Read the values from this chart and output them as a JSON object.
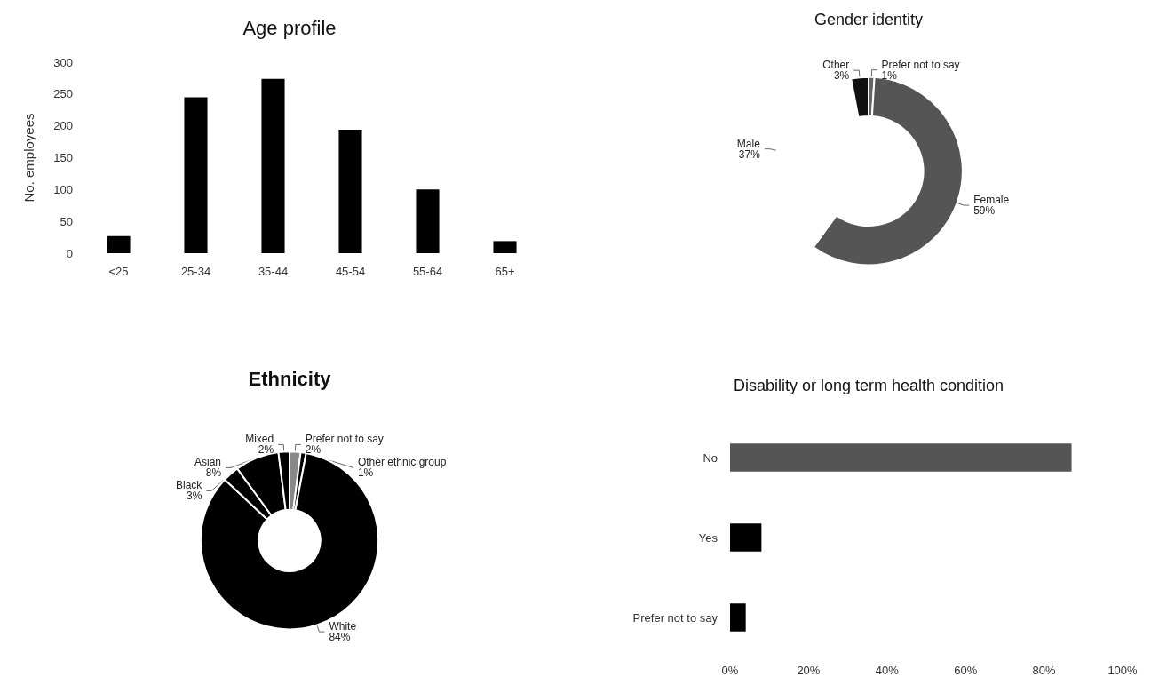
{
  "chart_data": [
    {
      "type": "bar",
      "title": "Age profile",
      "ylabel": "No. employees",
      "categories": [
        "<25",
        "25-34",
        "35-44",
        "45-54",
        "55-64",
        "65+"
      ],
      "values": [
        27,
        245,
        274,
        194,
        100,
        19
      ],
      "color": "#000000",
      "ylim": [
        0,
        300
      ],
      "yticks": [
        0,
        50,
        100,
        150,
        200,
        250,
        300
      ],
      "grid": false
    },
    {
      "type": "donut",
      "title": "Gender identity",
      "categories": [
        "Prefer not to say",
        "Female",
        "Male",
        "Other"
      ],
      "values": [
        1,
        59,
        37,
        3
      ],
      "colors": [
        "#666666",
        "#555555",
        "#ffffff",
        "#111111"
      ],
      "value_labels": [
        "1%",
        "59%",
        "37%",
        "3%"
      ]
    },
    {
      "type": "donut",
      "title": "Ethnicity",
      "categories": [
        "Prefer not to say",
        "Other ethnic group",
        "White",
        "Black",
        "Asian",
        "Mixed"
      ],
      "values": [
        2,
        1,
        84,
        3,
        8,
        2
      ],
      "colors": [
        "#888888",
        "#000000",
        "#000000",
        "#000000",
        "#000000",
        "#000000"
      ],
      "value_labels": [
        "2%",
        "1%",
        "84%",
        "3%",
        "8%",
        "2%"
      ]
    },
    {
      "type": "bar",
      "orientation": "horizontal",
      "title": "Disability or long term health condition",
      "categories": [
        "No",
        "Yes",
        "Prefer not to say"
      ],
      "values": [
        87,
        8,
        4
      ],
      "colors": [
        "#555555",
        "#000000",
        "#000000"
      ],
      "xlim": [
        0,
        100
      ],
      "xticks": [
        {
          "value": 0,
          "label": "0%"
        },
        {
          "value": 20,
          "label": "20%"
        },
        {
          "value": 40,
          "label": "40%"
        },
        {
          "value": 60,
          "label": "60%"
        },
        {
          "value": 80,
          "label": "80%"
        },
        {
          "value": 100,
          "label": "100%"
        }
      ],
      "grid": false
    }
  ]
}
